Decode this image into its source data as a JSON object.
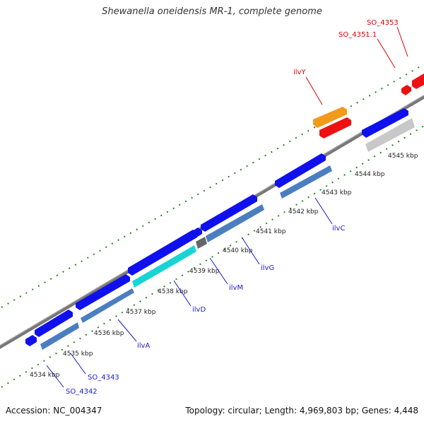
{
  "title": "Shewanella oneidensis MR-1, complete genome",
  "footer": {
    "accession": "Accession: NC_004347",
    "summary": "Topology: circular; Length: 4,969,803 bp; Genes: 4,448"
  },
  "colors": {
    "backbone": "#777777",
    "tick_ruler": "#1a8a1a",
    "label_blue": "#1a1acc",
    "label_red": "#dd0000",
    "gene_blue": "#1010ee",
    "gene_red": "#ee1111",
    "gene_orange": "#f29a1a",
    "cds_steel": "#4a7ec0",
    "cds_gray": "#c8c8c8",
    "cds_cyan": "#19d4d4",
    "cds_dark": "#666666"
  },
  "scale_labels": [
    "4534 kbp",
    "4535 kbp",
    "4536 kbp",
    "4537 kbp",
    "4538 kbp",
    "4539 kbp",
    "4540 kbp",
    "4541 kbp",
    "4542 kbp",
    "4543 kbp",
    "4544 kbp",
    "4545 kbp"
  ],
  "gene_labels": [
    {
      "text": "SO_4342",
      "color": "blue"
    },
    {
      "text": "SO_4343",
      "color": "blue"
    },
    {
      "text": "ilvA",
      "color": "blue"
    },
    {
      "text": "ilvD",
      "color": "blue"
    },
    {
      "text": "ilvM",
      "color": "blue"
    },
    {
      "text": "ilvG",
      "color": "blue"
    },
    {
      "text": "ilvC",
      "color": "blue"
    },
    {
      "text": "ilvY",
      "color": "red"
    },
    {
      "text": "SO_4351.1",
      "color": "red"
    },
    {
      "text": "SO_4353",
      "color": "red"
    }
  ]
}
